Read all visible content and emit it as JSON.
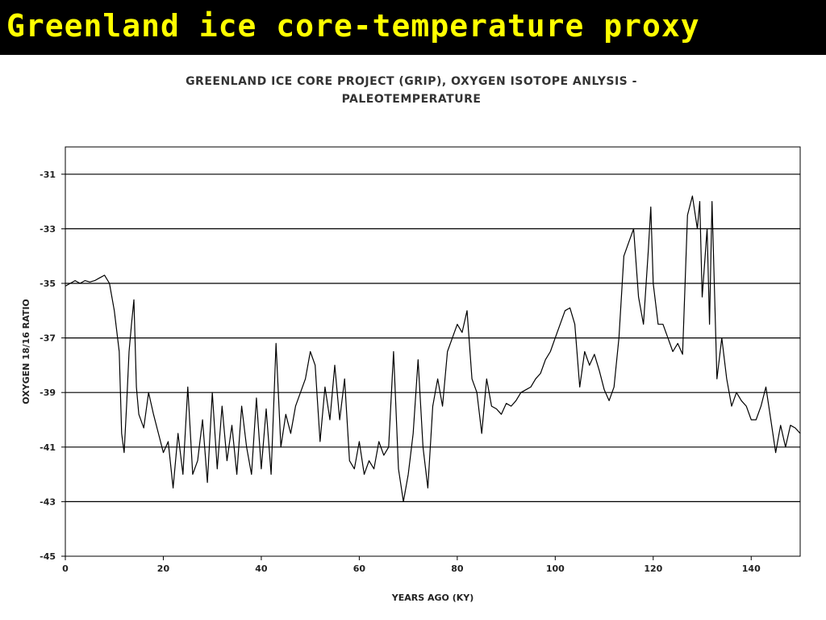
{
  "slide": {
    "title": "Greenland ice core-temperature proxy",
    "title_color": "#ffff00",
    "background": "#000000"
  },
  "chart_data": {
    "type": "line",
    "title_line1": "GREENLAND ICE CORE PROJECT (GRIP), OXYGEN ISOTOPE ANLYSIS -",
    "title_line2": "PALEOTEMPERATURE",
    "xlabel": "YEARS AGO (KY)",
    "ylabel": "OXYGEN 18/16 RATIO",
    "xlim": [
      0,
      150
    ],
    "ylim": [
      -45,
      -30
    ],
    "x_ticks": [
      0,
      20,
      40,
      60,
      80,
      100,
      120,
      140
    ],
    "y_ticks": [
      -31,
      -33,
      -35,
      -37,
      -39,
      -41,
      -43,
      -45
    ],
    "grid": "horizontal",
    "series": [
      {
        "color": "#000000",
        "points": [
          [
            0,
            -35.1
          ],
          [
            1,
            -35.0
          ],
          [
            2,
            -34.9
          ],
          [
            3,
            -35.0
          ],
          [
            4,
            -34.9
          ],
          [
            5,
            -34.95
          ],
          [
            6,
            -34.9
          ],
          [
            7,
            -34.8
          ],
          [
            8,
            -34.7
          ],
          [
            9,
            -35.0
          ],
          [
            10,
            -36.0
          ],
          [
            11,
            -37.5
          ],
          [
            11.5,
            -40.5
          ],
          [
            12,
            -41.2
          ],
          [
            12.5,
            -39.5
          ],
          [
            13,
            -37.5
          ],
          [
            13.5,
            -36.5
          ],
          [
            14,
            -35.6
          ],
          [
            14.5,
            -38.8
          ],
          [
            15,
            -39.8
          ],
          [
            16,
            -40.3
          ],
          [
            17,
            -39.0
          ],
          [
            18,
            -39.8
          ],
          [
            19,
            -40.5
          ],
          [
            20,
            -41.2
          ],
          [
            21,
            -40.8
          ],
          [
            22,
            -42.5
          ],
          [
            23,
            -40.5
          ],
          [
            24,
            -42.0
          ],
          [
            25,
            -38.8
          ],
          [
            26,
            -42.0
          ],
          [
            27,
            -41.5
          ],
          [
            28,
            -40.0
          ],
          [
            29,
            -42.3
          ],
          [
            30,
            -39.0
          ],
          [
            31,
            -41.8
          ],
          [
            32,
            -39.5
          ],
          [
            33,
            -41.5
          ],
          [
            34,
            -40.2
          ],
          [
            35,
            -42.0
          ],
          [
            36,
            -39.5
          ],
          [
            37,
            -41.0
          ],
          [
            38,
            -42.0
          ],
          [
            39,
            -39.2
          ],
          [
            40,
            -41.8
          ],
          [
            41,
            -39.6
          ],
          [
            42,
            -42.0
          ],
          [
            43,
            -37.2
          ],
          [
            44,
            -41.0
          ],
          [
            45,
            -39.8
          ],
          [
            46,
            -40.5
          ],
          [
            47,
            -39.5
          ],
          [
            48,
            -39.0
          ],
          [
            49,
            -38.5
          ],
          [
            50,
            -37.5
          ],
          [
            51,
            -38.0
          ],
          [
            52,
            -40.8
          ],
          [
            53,
            -38.8
          ],
          [
            54,
            -40.0
          ],
          [
            55,
            -38.0
          ],
          [
            56,
            -40.0
          ],
          [
            57,
            -38.5
          ],
          [
            58,
            -41.5
          ],
          [
            59,
            -41.8
          ],
          [
            60,
            -40.8
          ],
          [
            61,
            -42.0
          ],
          [
            62,
            -41.5
          ],
          [
            63,
            -41.8
          ],
          [
            64,
            -40.8
          ],
          [
            65,
            -41.3
          ],
          [
            66,
            -41.0
          ],
          [
            67,
            -37.5
          ],
          [
            68,
            -41.8
          ],
          [
            69,
            -43.0
          ],
          [
            70,
            -42.0
          ],
          [
            71,
            -40.5
          ],
          [
            72,
            -37.8
          ],
          [
            73,
            -41.0
          ],
          [
            74,
            -42.5
          ],
          [
            75,
            -39.5
          ],
          [
            76,
            -38.5
          ],
          [
            77,
            -39.5
          ],
          [
            78,
            -37.5
          ],
          [
            79,
            -37.0
          ],
          [
            80,
            -36.5
          ],
          [
            81,
            -36.8
          ],
          [
            82,
            -36.0
          ],
          [
            83,
            -38.5
          ],
          [
            84,
            -39.0
          ],
          [
            85,
            -40.5
          ],
          [
            86,
            -38.5
          ],
          [
            87,
            -39.5
          ],
          [
            88,
            -39.6
          ],
          [
            89,
            -39.8
          ],
          [
            90,
            -39.4
          ],
          [
            91,
            -39.5
          ],
          [
            92,
            -39.3
          ],
          [
            93,
            -39.0
          ],
          [
            94,
            -38.9
          ],
          [
            95,
            -38.8
          ],
          [
            96,
            -38.5
          ],
          [
            97,
            -38.3
          ],
          [
            98,
            -37.8
          ],
          [
            99,
            -37.5
          ],
          [
            100,
            -37.0
          ],
          [
            101,
            -36.5
          ],
          [
            102,
            -36.0
          ],
          [
            103,
            -35.9
          ],
          [
            104,
            -36.5
          ],
          [
            105,
            -38.8
          ],
          [
            106,
            -37.5
          ],
          [
            107,
            -38.0
          ],
          [
            108,
            -37.6
          ],
          [
            109,
            -38.2
          ],
          [
            110,
            -38.9
          ],
          [
            111,
            -39.3
          ],
          [
            112,
            -38.8
          ],
          [
            113,
            -37.0
          ],
          [
            114,
            -34.0
          ],
          [
            115,
            -33.5
          ],
          [
            116,
            -33.0
          ],
          [
            117,
            -35.5
          ],
          [
            118,
            -36.5
          ],
          [
            119,
            -33.8
          ],
          [
            119.5,
            -32.2
          ],
          [
            120,
            -35.0
          ],
          [
            121,
            -36.5
          ],
          [
            122,
            -36.5
          ],
          [
            123,
            -37.0
          ],
          [
            124,
            -37.5
          ],
          [
            125,
            -37.2
          ],
          [
            126,
            -37.6
          ],
          [
            127,
            -32.5
          ],
          [
            128,
            -31.8
          ],
          [
            129,
            -33.0
          ],
          [
            129.5,
            -32.0
          ],
          [
            130,
            -35.5
          ],
          [
            131,
            -33.0
          ],
          [
            131.5,
            -36.5
          ],
          [
            132,
            -32.0
          ],
          [
            133,
            -38.5
          ],
          [
            134,
            -37.0
          ],
          [
            135,
            -38.5
          ],
          [
            136,
            -39.5
          ],
          [
            137,
            -39.0
          ],
          [
            138,
            -39.3
          ],
          [
            139,
            -39.5
          ],
          [
            140,
            -40.0
          ],
          [
            141,
            -40.0
          ],
          [
            142,
            -39.5
          ],
          [
            143,
            -38.8
          ],
          [
            144,
            -40.0
          ],
          [
            145,
            -41.2
          ],
          [
            146,
            -40.2
          ],
          [
            147,
            -41.0
          ],
          [
            148,
            -40.2
          ],
          [
            149,
            -40.3
          ],
          [
            150,
            -40.5
          ]
        ]
      }
    ]
  }
}
